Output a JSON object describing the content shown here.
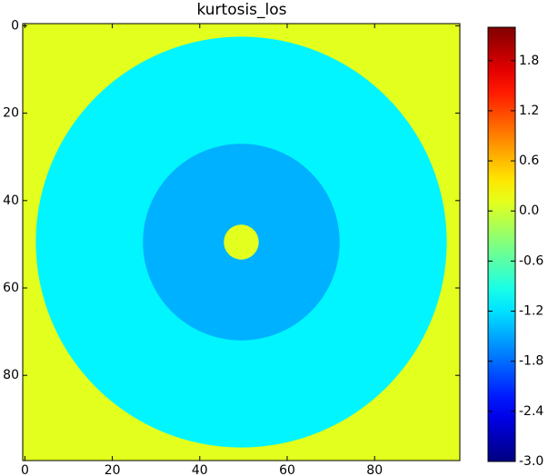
{
  "chart_data": {
    "type": "image",
    "title": "kurtosis_los",
    "xlim": [
      -0.5,
      99.5
    ],
    "ylim": [
      99.5,
      -0.5
    ],
    "xticks": [
      0,
      20,
      40,
      60,
      80
    ],
    "yticks": [
      0,
      20,
      40,
      60,
      80
    ],
    "colormap": "jet",
    "clim": [
      -3,
      2.2
    ],
    "colorbar_ticks": [
      {
        "value": -3,
        "label": "-3.0"
      },
      {
        "value": -2.4,
        "label": "-2.4"
      },
      {
        "value": -1.8,
        "label": "-1.8"
      },
      {
        "value": -1.2,
        "label": "-1.2"
      },
      {
        "value": -0.6,
        "label": "-0.6"
      },
      {
        "value": 0,
        "label": "0.0"
      },
      {
        "value": 0.6,
        "label": "0.6"
      },
      {
        "value": 1.2,
        "label": "1.2"
      },
      {
        "value": 1.8,
        "label": "1.8"
      }
    ],
    "background": 0.1,
    "rings": [
      {
        "cx": 49.5,
        "cy": 49.5,
        "r": 47,
        "value": -1.1
      },
      {
        "cx": 49.5,
        "cy": 49.5,
        "r": 22.5,
        "value": -1.45
      },
      {
        "cx": 49.5,
        "cy": 49.5,
        "r": 4,
        "value": 0.1
      }
    ]
  }
}
